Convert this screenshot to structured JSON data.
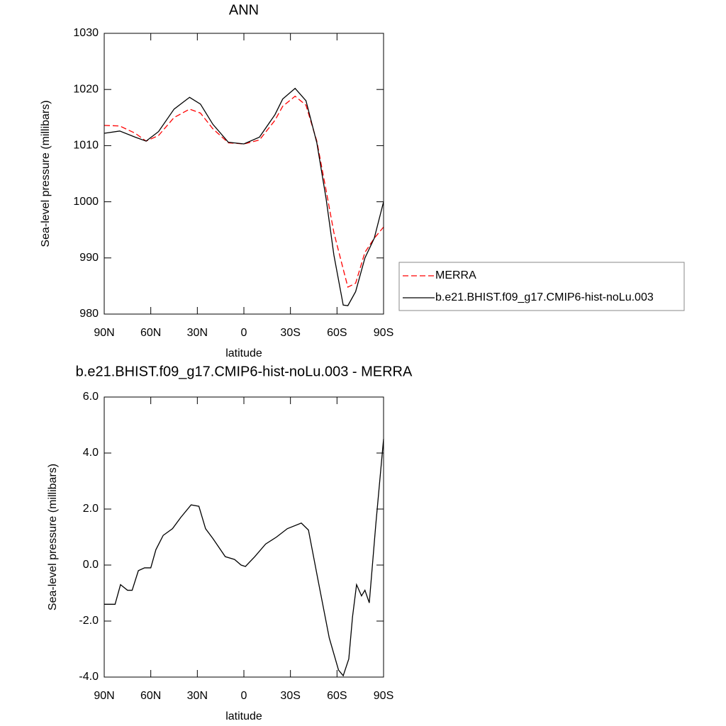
{
  "chart_data": [
    {
      "type": "line",
      "title": "ANN",
      "x_label": "latitude",
      "y_label": "Sea-level pressure (millibars)",
      "x": [
        90,
        80,
        70,
        63,
        55,
        45,
        35,
        28,
        20,
        10,
        0,
        -10,
        -20,
        -25,
        -33,
        -40,
        -47,
        -53,
        -58,
        -64,
        -67,
        -72,
        -78,
        -84,
        -90
      ],
      "series": [
        {
          "name": "MERRA",
          "color": "#ff0000",
          "style": "dashed",
          "values": [
            1013.6,
            1013.5,
            1012.2,
            1010.8,
            1011.8,
            1015,
            1016.5,
            1015.8,
            1013,
            1010.5,
            1010.3,
            1011,
            1014.5,
            1017,
            1018.8,
            1017.2,
            1010.8,
            1002,
            994.5,
            988,
            984.8,
            985.5,
            991,
            993.5,
            995.5
          ]
        },
        {
          "name": "b.e21.BHIST.f09_g17.CMIP6-hist-noLu.003",
          "color": "#000000",
          "style": "solid",
          "values": [
            1012.2,
            1012.6,
            1011.5,
            1010.8,
            1012.5,
            1016.5,
            1018.6,
            1017.4,
            1013.8,
            1010.6,
            1010.3,
            1011.5,
            1015.5,
            1018.3,
            1020.2,
            1018,
            1010.5,
            1000.5,
            990.5,
            981.6,
            981.5,
            984,
            990,
            993.5,
            1000
          ]
        }
      ],
      "xlim": [
        90,
        -90
      ],
      "xticks": [
        {
          "value": 90,
          "label": "90N"
        },
        {
          "value": 60,
          "label": "60N"
        },
        {
          "value": 30,
          "label": "30N"
        },
        0,
        {
          "value": -30,
          "label": "30S"
        },
        {
          "value": -60,
          "label": "60S"
        },
        {
          "value": -90,
          "label": "90S"
        }
      ],
      "ylim": [
        980,
        1030
      ],
      "yticks": [
        980,
        990,
        1000,
        1010,
        1020,
        1030
      ],
      "legend": "right"
    },
    {
      "type": "line",
      "title": "b.e21.BHIST.f09_g17.CMIP6-hist-noLu.003 - MERRA",
      "x_label": "latitude",
      "y_label": "Sea-level pressure (millibars)",
      "x": [
        90,
        83,
        79.5,
        75,
        72,
        68,
        64,
        60,
        56.7,
        52,
        46,
        40.7,
        34,
        29,
        24.7,
        20,
        12,
        6,
        1.8,
        -1,
        -7,
        -14,
        -21,
        -28,
        -37,
        -41.6,
        -48,
        -55,
        -61,
        -64,
        -67.6,
        -70,
        -72.6,
        -75.8,
        -78,
        -80.8,
        -85,
        -90
      ],
      "series": [
        {
          "color": "#000000",
          "style": "solid",
          "values": [
            -1.4,
            -1.4,
            -0.7,
            -0.9,
            -0.9,
            -0.2,
            -0.1,
            -0.1,
            0.55,
            1.06,
            1.3,
            1.7,
            2.15,
            2.1,
            1.3,
            0.95,
            0.3,
            0.2,
            0,
            -0.05,
            0.3,
            0.75,
            1.0,
            1.3,
            1.5,
            1.25,
            -0.6,
            -2.6,
            -3.75,
            -3.95,
            -3.35,
            -1.85,
            -0.7,
            -1.1,
            -0.9,
            -1.35,
            1.45,
            4.5
          ]
        }
      ],
      "xlim": [
        90,
        -90
      ],
      "xticks": [
        {
          "value": 90,
          "label": "90N"
        },
        {
          "value": 60,
          "label": "60N"
        },
        {
          "value": 30,
          "label": "30N"
        },
        0,
        {
          "value": -30,
          "label": "30S"
        },
        {
          "value": -60,
          "label": "60S"
        },
        {
          "value": -90,
          "label": "90S"
        }
      ],
      "ylim": [
        -4,
        6
      ],
      "yticks": [
        {
          "value": -4,
          "label": "-4.0"
        },
        {
          "value": -2,
          "label": "-2.0"
        },
        {
          "value": 0,
          "label": "0.0"
        },
        {
          "value": 2,
          "label": "2.0"
        },
        {
          "value": 4,
          "label": "4.0"
        },
        {
          "value": 6,
          "label": "6.0"
        }
      ]
    }
  ]
}
